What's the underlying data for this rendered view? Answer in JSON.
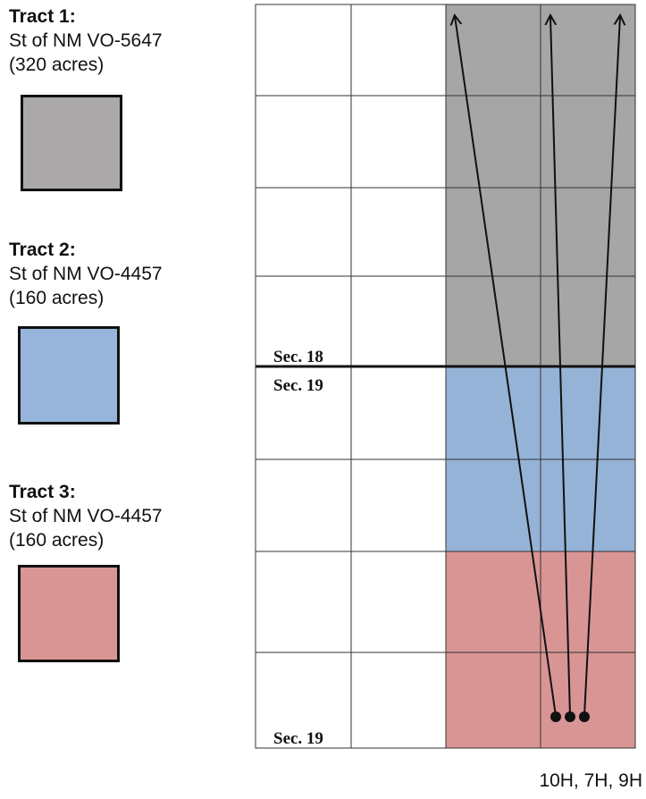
{
  "legend": {
    "tracts": [
      {
        "title": "Tract 1:",
        "owner": "St of NM VO-5647",
        "acres": "(320 acres)",
        "color": "#aba8a9"
      },
      {
        "title": "Tract 2:",
        "owner": "St of NM VO-4457",
        "acres": "(160 acres)",
        "color": "#97b5da"
      },
      {
        "title": "Tract 3:",
        "owner": "St of NM VO-4457",
        "acres": "(160 acres)",
        "color": "#d99594"
      }
    ]
  },
  "map": {
    "section_labels": {
      "upper_boundary": "Sec. 18",
      "lower_boundary": "Sec. 19",
      "bottom": "Sec. 19"
    },
    "tract_fill_colors": {
      "tract_1_section": "#a6a6a6",
      "tract_2_section": "#95b3d7",
      "tract_3_section": "#d99594"
    },
    "wells_label": "10H, 7H, 9H"
  }
}
